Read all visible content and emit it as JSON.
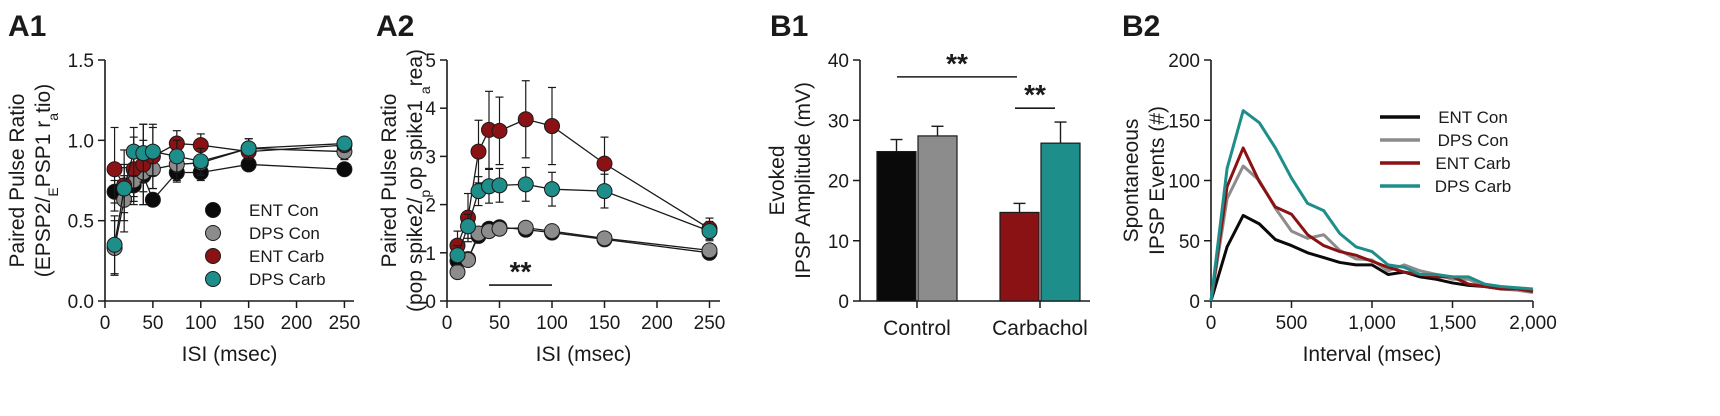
{
  "colors": {
    "ent_con": "#0a0a0a",
    "dps_con": "#8c8c8c",
    "ent_carb": "#8b1214",
    "dps_carb": "#1e8e8a",
    "axis": "#1a1a1a"
  },
  "chart_data": [
    {
      "id": "A1",
      "panel_label": "A1",
      "type": "scatter",
      "xlabel": "ISI (msec)",
      "ylabel_line1": "Paired Pulse Ratio",
      "ylabel_line2": "(EPSP2/EPSP1 ratio)",
      "xlim": [
        0,
        260
      ],
      "ylim": [
        0,
        1.5
      ],
      "xticks": [
        0,
        50,
        100,
        150,
        200,
        250
      ],
      "xtick_labels": [
        "0",
        "50",
        "100",
        "150",
        "200",
        "250"
      ],
      "yticks": [
        0,
        0.5,
        1.0,
        1.5
      ],
      "ytick_labels": [
        "0.0",
        "0.5",
        "1.0",
        "1.5"
      ],
      "legend": [
        "ENT Con",
        "DPS Con",
        "ENT Carb",
        "DPS Carb"
      ],
      "legend_position": "bottom-right",
      "series": [
        {
          "name": "ENT Con",
          "key": "ent_con",
          "x": [
            10,
            20,
            30,
            40,
            50,
            75,
            100,
            150,
            250
          ],
          "y": [
            0.68,
            0.7,
            0.72,
            0.78,
            0.63,
            0.8,
            0.8,
            0.85,
            0.82
          ],
          "err": [
            0.07,
            0.08,
            0.07,
            0.1,
            0.04,
            0.06,
            0.05,
            0.04,
            0.03
          ]
        },
        {
          "name": "DPS Con",
          "key": "dps_con",
          "x": [
            10,
            20,
            30,
            40,
            50,
            75,
            100,
            150,
            250
          ],
          "y": [
            0.33,
            0.63,
            0.75,
            0.8,
            0.82,
            0.85,
            0.86,
            0.95,
            0.93
          ],
          "err": [
            0.17,
            0.2,
            0.15,
            0.2,
            0.12,
            0.1,
            0.08,
            0.06,
            0.05
          ]
        },
        {
          "name": "ENT Carb",
          "key": "ent_carb",
          "x": [
            10,
            20,
            30,
            40,
            50,
            75,
            100,
            150,
            250
          ],
          "y": [
            0.82,
            0.72,
            0.82,
            0.85,
            0.9,
            0.98,
            0.97,
            0.93,
            0.97
          ],
          "err": [
            0.26,
            0.22,
            0.2,
            0.25,
            0.2,
            0.08,
            0.07,
            0.05,
            0.04
          ]
        },
        {
          "name": "DPS Carb",
          "key": "dps_carb",
          "x": [
            10,
            20,
            30,
            40,
            50,
            75,
            100,
            150,
            250
          ],
          "y": [
            0.35,
            0.7,
            0.93,
            0.92,
            0.93,
            0.9,
            0.87,
            0.95,
            0.98
          ],
          "err": [
            0.18,
            0.15,
            0.15,
            0.18,
            0.15,
            0.1,
            0.08,
            0.06,
            0.04
          ]
        }
      ]
    },
    {
      "id": "A2",
      "panel_label": "A2",
      "type": "scatter",
      "xlabel": "ISI (msec)",
      "ylabel_line1": "Paired Pulse Ratio",
      "ylabel_line2": "(pop spike2/pop spike1 area)",
      "xlim": [
        0,
        260
      ],
      "ylim": [
        0,
        5
      ],
      "xticks": [
        0,
        50,
        100,
        150,
        200,
        250
      ],
      "xtick_labels": [
        "0",
        "50",
        "100",
        "150",
        "200",
        "250"
      ],
      "yticks": [
        0,
        1,
        2,
        3,
        4,
        5
      ],
      "ytick_labels": [
        "0",
        "1",
        "2",
        "3",
        "4",
        "5"
      ],
      "annotation": "**",
      "annotation_range": [
        40,
        100
      ],
      "annotation_y": 0.33,
      "series": [
        {
          "name": "ENT Con",
          "key": "ent_con",
          "x": [
            10,
            20,
            30,
            40,
            50,
            75,
            100,
            150,
            250
          ],
          "y": [
            0.83,
            0.87,
            1.35,
            1.5,
            1.53,
            1.48,
            1.42,
            1.28,
            1.0
          ],
          "err": [
            0.1,
            0.1,
            0.1,
            0.12,
            0.1,
            0.1,
            0.1,
            0.1,
            0.08
          ]
        },
        {
          "name": "DPS Con",
          "key": "dps_con",
          "x": [
            10,
            20,
            30,
            40,
            50,
            75,
            100,
            150,
            250
          ],
          "y": [
            0.6,
            0.85,
            1.4,
            1.45,
            1.5,
            1.52,
            1.45,
            1.3,
            1.05
          ],
          "err": [
            0.1,
            0.1,
            0.1,
            0.1,
            0.1,
            0.1,
            0.1,
            0.1,
            0.08
          ]
        },
        {
          "name": "ENT Carb",
          "key": "ent_carb",
          "x": [
            10,
            20,
            30,
            40,
            50,
            75,
            100,
            150,
            250
          ],
          "y": [
            1.15,
            1.73,
            3.1,
            3.55,
            3.53,
            3.77,
            3.63,
            2.85,
            1.5
          ],
          "err": [
            0.3,
            0.5,
            0.65,
            0.8,
            0.7,
            0.8,
            0.8,
            0.55,
            0.22
          ]
        },
        {
          "name": "DPS Carb",
          "key": "dps_carb",
          "x": [
            10,
            20,
            30,
            40,
            50,
            75,
            100,
            150,
            250
          ],
          "y": [
            0.95,
            1.55,
            2.28,
            2.38,
            2.4,
            2.42,
            2.32,
            2.28,
            1.45
          ],
          "err": [
            0.2,
            0.25,
            0.3,
            0.35,
            0.35,
            0.35,
            0.35,
            0.35,
            0.2
          ]
        }
      ]
    },
    {
      "id": "B1",
      "panel_label": "B1",
      "type": "bar",
      "ylabel_line1": "Evoked",
      "ylabel_line2": "IPSP Amplitude (mV)",
      "ylim": [
        0,
        40
      ],
      "yticks": [
        0,
        10,
        20,
        30,
        40
      ],
      "ytick_labels": [
        "0",
        "10",
        "20",
        "30",
        "40"
      ],
      "categories": [
        "Control",
        "Carbachol"
      ],
      "bars": [
        {
          "category": "Control",
          "key": "ent_con",
          "value": 24.8,
          "err": 2.0
        },
        {
          "category": "Control",
          "key": "dps_con",
          "value": 27.4,
          "err": 1.6
        },
        {
          "category": "Carbachol",
          "key": "ent_carb",
          "value": 14.7,
          "err": 1.5
        },
        {
          "category": "Carbachol",
          "key": "dps_carb",
          "value": 26.2,
          "err": 3.5
        }
      ],
      "annotations": [
        {
          "text": "**",
          "from_bar": 0,
          "to_bar": 2,
          "y": 37.2
        },
        {
          "text": "**",
          "from_bar": 2,
          "to_bar": 3,
          "y": 32.0
        }
      ]
    },
    {
      "id": "B2",
      "panel_label": "B2",
      "type": "line",
      "xlabel": "Interval (msec)",
      "ylabel_line1": "Spontaneous",
      "ylabel_line2": "IPSP Events (#)",
      "xlim": [
        0,
        2000
      ],
      "ylim": [
        0,
        200
      ],
      "xticks": [
        0,
        500,
        1000,
        1500,
        2000
      ],
      "xtick_labels": [
        "0",
        "500",
        "1,000",
        "1,500",
        "2,000"
      ],
      "yticks": [
        0,
        50,
        100,
        150,
        200
      ],
      "ytick_labels": [
        "0",
        "50",
        "100",
        "150",
        "200"
      ],
      "legend": [
        "ENT Con",
        "DPS Con",
        "ENT Carb",
        "DPS Carb"
      ],
      "legend_position": "top-right",
      "x": [
        0,
        100,
        200,
        300,
        400,
        500,
        600,
        700,
        800,
        900,
        1000,
        1100,
        1200,
        1300,
        1400,
        1500,
        1600,
        1700,
        1800,
        1900,
        2000
      ],
      "series": [
        {
          "name": "ENT Con",
          "key": "ent_con",
          "values": [
            0,
            45,
            71,
            64,
            51,
            46,
            40,
            36,
            32,
            30,
            30,
            22,
            24,
            20,
            18,
            15,
            13,
            12,
            10,
            10,
            8
          ]
        },
        {
          "name": "DPS Con",
          "key": "dps_con",
          "values": [
            0,
            85,
            112,
            100,
            77,
            58,
            52,
            55,
            42,
            35,
            34,
            25,
            30,
            25,
            22,
            18,
            18,
            12,
            10,
            9,
            7
          ]
        },
        {
          "name": "ENT Carb",
          "key": "ent_carb",
          "values": [
            0,
            95,
            127,
            99,
            78,
            72,
            55,
            46,
            41,
            38,
            33,
            28,
            24,
            22,
            20,
            20,
            14,
            12,
            10,
            10,
            8
          ]
        },
        {
          "name": "DPS Carb",
          "key": "dps_carb",
          "values": [
            0,
            110,
            158,
            148,
            127,
            102,
            81,
            75,
            56,
            45,
            41,
            30,
            28,
            22,
            22,
            20,
            20,
            14,
            12,
            11,
            10
          ]
        }
      ]
    }
  ]
}
